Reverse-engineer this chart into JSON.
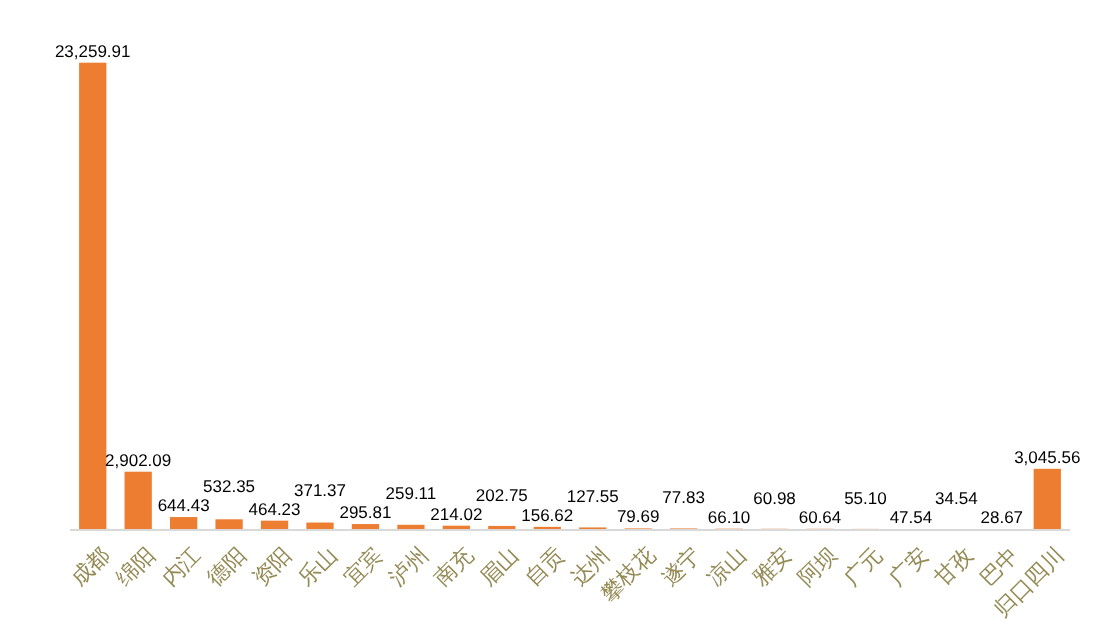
{
  "chart_data": {
    "type": "bar",
    "categories": [
      "成都",
      "绵阳",
      "内江",
      "德阳",
      "资阳",
      "乐山",
      "宜宾",
      "泸州",
      "南充",
      "眉山",
      "自贡",
      "达州",
      "攀枝花",
      "遂宁",
      "凉山",
      "雅安",
      "阿坝",
      "广元",
      "广安",
      "甘孜",
      "巴中",
      "归口四川"
    ],
    "values": [
      23259.91,
      2902.09,
      644.43,
      532.35,
      464.23,
      371.37,
      295.81,
      259.11,
      214.02,
      202.75,
      156.62,
      127.55,
      79.69,
      77.83,
      66.1,
      60.98,
      60.64,
      55.1,
      47.54,
      34.54,
      28.67,
      3045.56
    ],
    "value_labels": [
      "23,259.91",
      "2,902.09",
      "644.43",
      "532.35",
      "464.23",
      "371.37",
      "295.81",
      "259.11",
      "214.02",
      "202.75",
      "156.62",
      "127.55",
      "79.69",
      "77.83",
      "66.10",
      "60.98",
      "60.64",
      "55.10",
      "47.54",
      "34.54",
      "28.67",
      "3,045.56"
    ],
    "color": "#ed7d31",
    "tick_labels": "x"
  }
}
